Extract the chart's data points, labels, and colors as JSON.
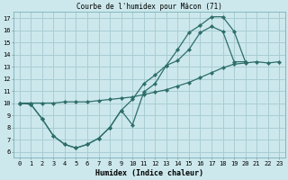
{
  "title": "Courbe de l'humidex pour Mâcon (71)",
  "xlabel": "Humidex (Indice chaleur)",
  "bg_color": "#cce8ec",
  "grid_color": "#a8cdd4",
  "line_color": "#2d6e6a",
  "xlim": [
    -0.5,
    23.5
  ],
  "ylim": [
    5.5,
    17.5
  ],
  "xticks": [
    0,
    1,
    2,
    3,
    4,
    5,
    6,
    7,
    8,
    9,
    10,
    11,
    12,
    13,
    14,
    15,
    16,
    17,
    18,
    19,
    20,
    21,
    22,
    23
  ],
  "yticks": [
    6,
    7,
    8,
    9,
    10,
    11,
    12,
    13,
    14,
    15,
    16,
    17
  ],
  "curve1_x": [
    0,
    1,
    2,
    3,
    4,
    5,
    6,
    7,
    8,
    9,
    10,
    11,
    12,
    13,
    14,
    15,
    16,
    17,
    18,
    19,
    20
  ],
  "curve1_y": [
    10.0,
    9.9,
    8.7,
    7.3,
    6.6,
    6.3,
    6.6,
    7.1,
    8.0,
    9.4,
    8.2,
    10.9,
    11.6,
    13.1,
    13.5,
    14.4,
    15.8,
    16.3,
    15.9,
    13.4,
    13.4
  ],
  "curve2_x": [
    0,
    1,
    2,
    3,
    4,
    5,
    6,
    7,
    8,
    9,
    10,
    11,
    12,
    13,
    14,
    15,
    16,
    17,
    18,
    19,
    20
  ],
  "curve2_y": [
    10.0,
    9.9,
    8.7,
    7.3,
    6.6,
    6.3,
    6.6,
    7.1,
    8.0,
    9.4,
    10.3,
    11.6,
    12.3,
    13.1,
    14.4,
    15.8,
    16.4,
    17.1,
    17.1,
    15.9,
    13.4
  ],
  "curve3_x": [
    0,
    1,
    2,
    3,
    4,
    5,
    6,
    7,
    8,
    9,
    10,
    11,
    12,
    13,
    14,
    15,
    16,
    17,
    18,
    19,
    20,
    21,
    22,
    23
  ],
  "curve3_y": [
    10.0,
    10.0,
    10.0,
    10.0,
    10.1,
    10.1,
    10.1,
    10.2,
    10.3,
    10.4,
    10.5,
    10.7,
    10.9,
    11.1,
    11.4,
    11.7,
    12.1,
    12.5,
    12.9,
    13.2,
    13.3,
    13.4,
    13.3,
    13.4
  ]
}
